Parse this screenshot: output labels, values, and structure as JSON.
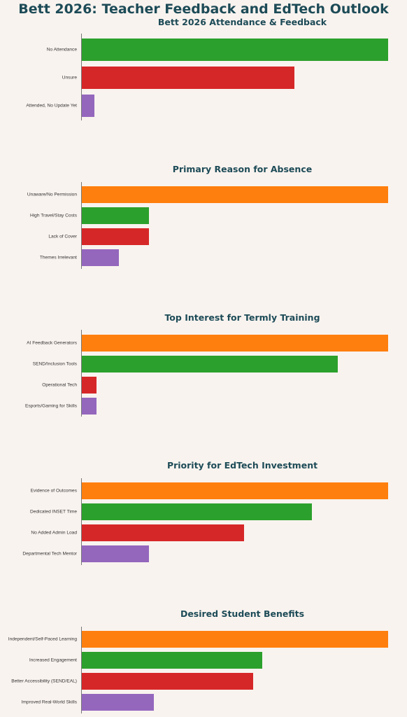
{
  "title": "Bett 2026: Teacher Feedback and EdTech Outlook",
  "colors": {
    "background": "#f9f3ef",
    "title": "#1d4b57"
  },
  "chart_data": [
    {
      "type": "bar",
      "orientation": "horizontal",
      "title": "Bett 2026 Attendance & Feedback",
      "categories": [
        "No Attendance",
        "Unsure",
        "Attended, No Update Yet"
      ],
      "values": [
        100,
        69.5,
        4
      ],
      "colors": [
        "#2ca02c",
        "#d62728",
        "#9467bd"
      ]
    },
    {
      "type": "bar",
      "orientation": "horizontal",
      "title": "Primary Reason for Absence",
      "categories": [
        "Unaware/No Permission",
        "High Travel/Stay Costs",
        "Lack of Cover",
        "Themes Irrelevant"
      ],
      "values": [
        100,
        22,
        22,
        12
      ],
      "colors": [
        "#ff7f0e",
        "#2ca02c",
        "#d62728",
        "#9467bd"
      ]
    },
    {
      "type": "bar",
      "orientation": "horizontal",
      "title": "Top Interest for Termly Training",
      "categories": [
        "AI Feedback Generators",
        "SEND/Inclusion Tools",
        "Operational Tech",
        "Esports/Gaming for Skills"
      ],
      "values": [
        100,
        83.5,
        4.8,
        4.8
      ],
      "colors": [
        "#ff7f0e",
        "#2ca02c",
        "#d62728",
        "#9467bd"
      ]
    },
    {
      "type": "bar",
      "orientation": "horizontal",
      "title": "Priority for EdTech Investment",
      "categories": [
        "Evidence of Outcomes",
        "Dedicated INSET Time",
        "No Added Admin Load",
        "Departmental Tech Mentor"
      ],
      "values": [
        100,
        75,
        53,
        22
      ],
      "colors": [
        "#ff7f0e",
        "#2ca02c",
        "#d62728",
        "#9467bd"
      ]
    },
    {
      "type": "bar",
      "orientation": "horizontal",
      "title": "Desired Student Benefits",
      "categories": [
        "Independent/Self-Paced Learning",
        "Increased Engagement",
        "Better Accessibility (SEND/EAL)",
        "Improved Real-World Skills"
      ],
      "values": [
        100,
        59,
        56,
        23.5
      ],
      "colors": [
        "#ff7f0e",
        "#2ca02c",
        "#d62728",
        "#9467bd"
      ]
    }
  ]
}
